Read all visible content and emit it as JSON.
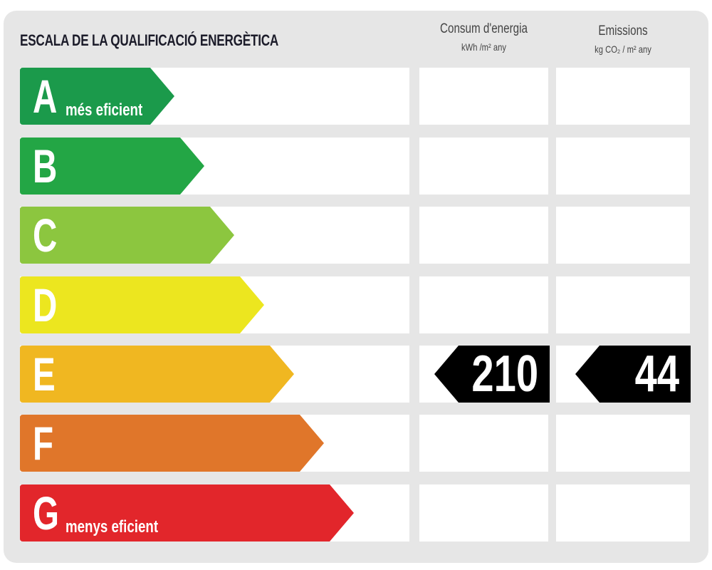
{
  "title": "ESCALA DE LA QUALIFICACIÓ ENERGÈTICA",
  "columns": [
    {
      "label": "Consum d'energia",
      "unit": "kWh /m² any"
    },
    {
      "label": "Emissions",
      "unit": "kg CO₂ / m² any"
    }
  ],
  "classes": [
    {
      "letter": "A",
      "sub": "més eficient",
      "color": "#1b9a4b"
    },
    {
      "letter": "B",
      "sub": "",
      "color": "#23a645"
    },
    {
      "letter": "C",
      "sub": "",
      "color": "#8cc63f"
    },
    {
      "letter": "D",
      "sub": "",
      "color": "#ece61f"
    },
    {
      "letter": "E",
      "sub": "",
      "color": "#f0b721"
    },
    {
      "letter": "F",
      "sub": "",
      "color": "#e0762a"
    },
    {
      "letter": "G",
      "sub": "menys eficient",
      "color": "#e2262b"
    }
  ],
  "rating": {
    "class": "E",
    "energy_consumption": "210",
    "emissions": "44",
    "indicator_color": "#000000"
  }
}
